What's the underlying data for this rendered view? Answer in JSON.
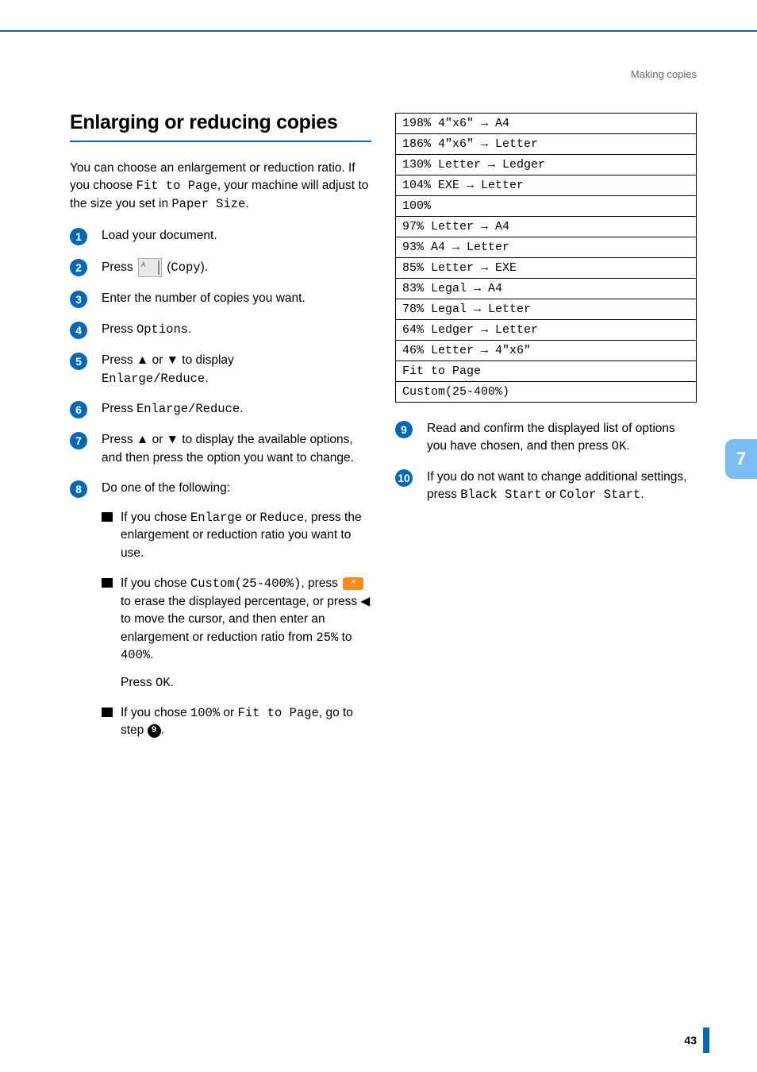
{
  "header": {
    "category": "Making copies"
  },
  "section": {
    "title": "Enlarging or reducing copies"
  },
  "intro": {
    "t1": "You can choose an enlargement or reduction ratio. If you choose ",
    "m1": "Fit to Page",
    "t2": ", your machine will adjust to the size you set in ",
    "m2": "Paper Size",
    "t3": "."
  },
  "steps": {
    "s1": "Load your document.",
    "s2": {
      "a": "Press ",
      "b": " (",
      "m": "Copy",
      "c": ")."
    },
    "s3": "Enter the number of copies you want.",
    "s4": {
      "a": "Press ",
      "m": "Options",
      "b": "."
    },
    "s5": {
      "a": "Press ▲ or ▼ to display ",
      "m": "Enlarge/Reduce",
      "b": "."
    },
    "s6": {
      "a": "Press ",
      "m": "Enlarge/Reduce",
      "b": "."
    },
    "s7": "Press ▲ or ▼ to display the available options, and then press the option you want to change.",
    "s8": "Do one of the following:",
    "s8a": {
      "a": "If you chose ",
      "m1": "Enlarge",
      "b": " or ",
      "m2": "Reduce",
      "c": ", press the enlargement or reduction ratio you want to use."
    },
    "s8b": {
      "a": "If you chose ",
      "m1": "Custom(25-400%)",
      "b": ", press ",
      "c": " to erase the displayed percentage, or press ◀ to move the cursor, and then enter an enlargement or reduction ratio from ",
      "m2": "25%",
      "d": " to ",
      "m3": "400%",
      "e": ".",
      "f": "Press ",
      "m4": "OK",
      "g": "."
    },
    "s8c": {
      "a": "If you chose ",
      "m1": "100%",
      "b": " or ",
      "m2": "Fit to Page",
      "c": ", go to step ",
      "ref": "9",
      "d": "."
    },
    "s9": {
      "a": "Read and confirm the displayed list of options you have chosen, and then press ",
      "m": "OK",
      "b": "."
    },
    "s10": {
      "a": "If you do not want to change additional settings, press ",
      "m1": "Black Start",
      "b": " or ",
      "m2": "Color Start",
      "c": "."
    }
  },
  "ratios": [
    "198% 4\"x6\" → A4",
    "186% 4\"x6\" → Letter",
    "130% Letter → Ledger",
    "104% EXE → Letter",
    "100%",
    "97% Letter → A4",
    "93% A4 → Letter",
    "85% Letter → EXE",
    "83% Legal → A4",
    "78% Legal → Letter",
    "64% Ledger → Letter",
    "46% Letter → 4\"x6\"",
    "Fit to Page",
    "Custom(25-400%)"
  ],
  "tab": "7",
  "pageNumber": "43",
  "colors": {
    "accent": "#0068b5",
    "tab": "#7bbdf0",
    "erase": "#ff8c1a"
  }
}
